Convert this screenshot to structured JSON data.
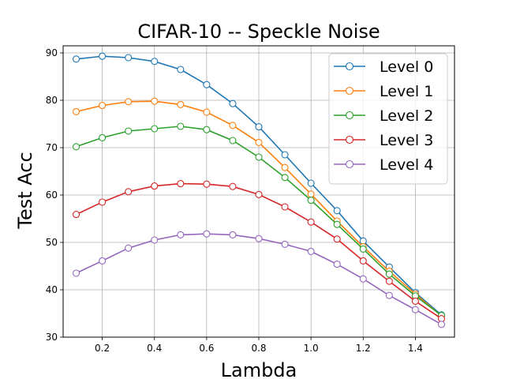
{
  "chart_data": {
    "type": "line",
    "title": "CIFAR-10 -- Speckle Noise",
    "xlabel": "Lambda",
    "ylabel": "Test Acc",
    "x": [
      0.1,
      0.2,
      0.3,
      0.4,
      0.5,
      0.6,
      0.7,
      0.8,
      0.9,
      1.0,
      1.1,
      1.2,
      1.3,
      1.4,
      1.5
    ],
    "xlim": [
      0.05,
      1.55
    ],
    "ylim": [
      30,
      91.5
    ],
    "xticks": [
      0.2,
      0.4,
      0.6,
      0.8,
      1.0,
      1.2,
      1.4
    ],
    "xtick_labels": [
      "0.2",
      "0.4",
      "0.6",
      "0.8",
      "1.0",
      "1.2",
      "1.4"
    ],
    "yticks": [
      30,
      40,
      50,
      60,
      70,
      80,
      90
    ],
    "ytick_labels": [
      "30",
      "40",
      "50",
      "60",
      "70",
      "80",
      "90"
    ],
    "grid": true,
    "legend_position": "top-right",
    "series": [
      {
        "name": "Level 0",
        "color": "#1f77b4",
        "values": [
          88.7,
          89.3,
          89.0,
          88.2,
          86.5,
          83.3,
          79.3,
          74.4,
          68.5,
          62.5,
          56.7,
          50.3,
          44.8,
          39.4,
          34.7
        ]
      },
      {
        "name": "Level 1",
        "color": "#ff7f0e",
        "values": [
          77.6,
          78.9,
          79.7,
          79.8,
          79.1,
          77.5,
          74.7,
          71.1,
          65.8,
          60.2,
          54.5,
          49.1,
          43.9,
          39.1,
          34.5
        ]
      },
      {
        "name": "Level 2",
        "color": "#2ca02c",
        "values": [
          70.2,
          72.1,
          73.5,
          74.0,
          74.5,
          73.8,
          71.5,
          68.0,
          63.7,
          58.9,
          53.8,
          48.6,
          43.3,
          38.7,
          34.6
        ]
      },
      {
        "name": "Level 3",
        "color": "#d62728",
        "values": [
          55.9,
          58.5,
          60.7,
          61.9,
          62.4,
          62.3,
          61.8,
          60.1,
          57.5,
          54.3,
          50.7,
          46.1,
          41.8,
          37.6,
          33.9
        ]
      },
      {
        "name": "Level 4",
        "color": "#9467bd",
        "values": [
          43.5,
          46.1,
          48.8,
          50.5,
          51.6,
          51.8,
          51.6,
          50.8,
          49.6,
          48.1,
          45.4,
          42.3,
          38.8,
          35.8,
          32.7
        ]
      }
    ]
  }
}
